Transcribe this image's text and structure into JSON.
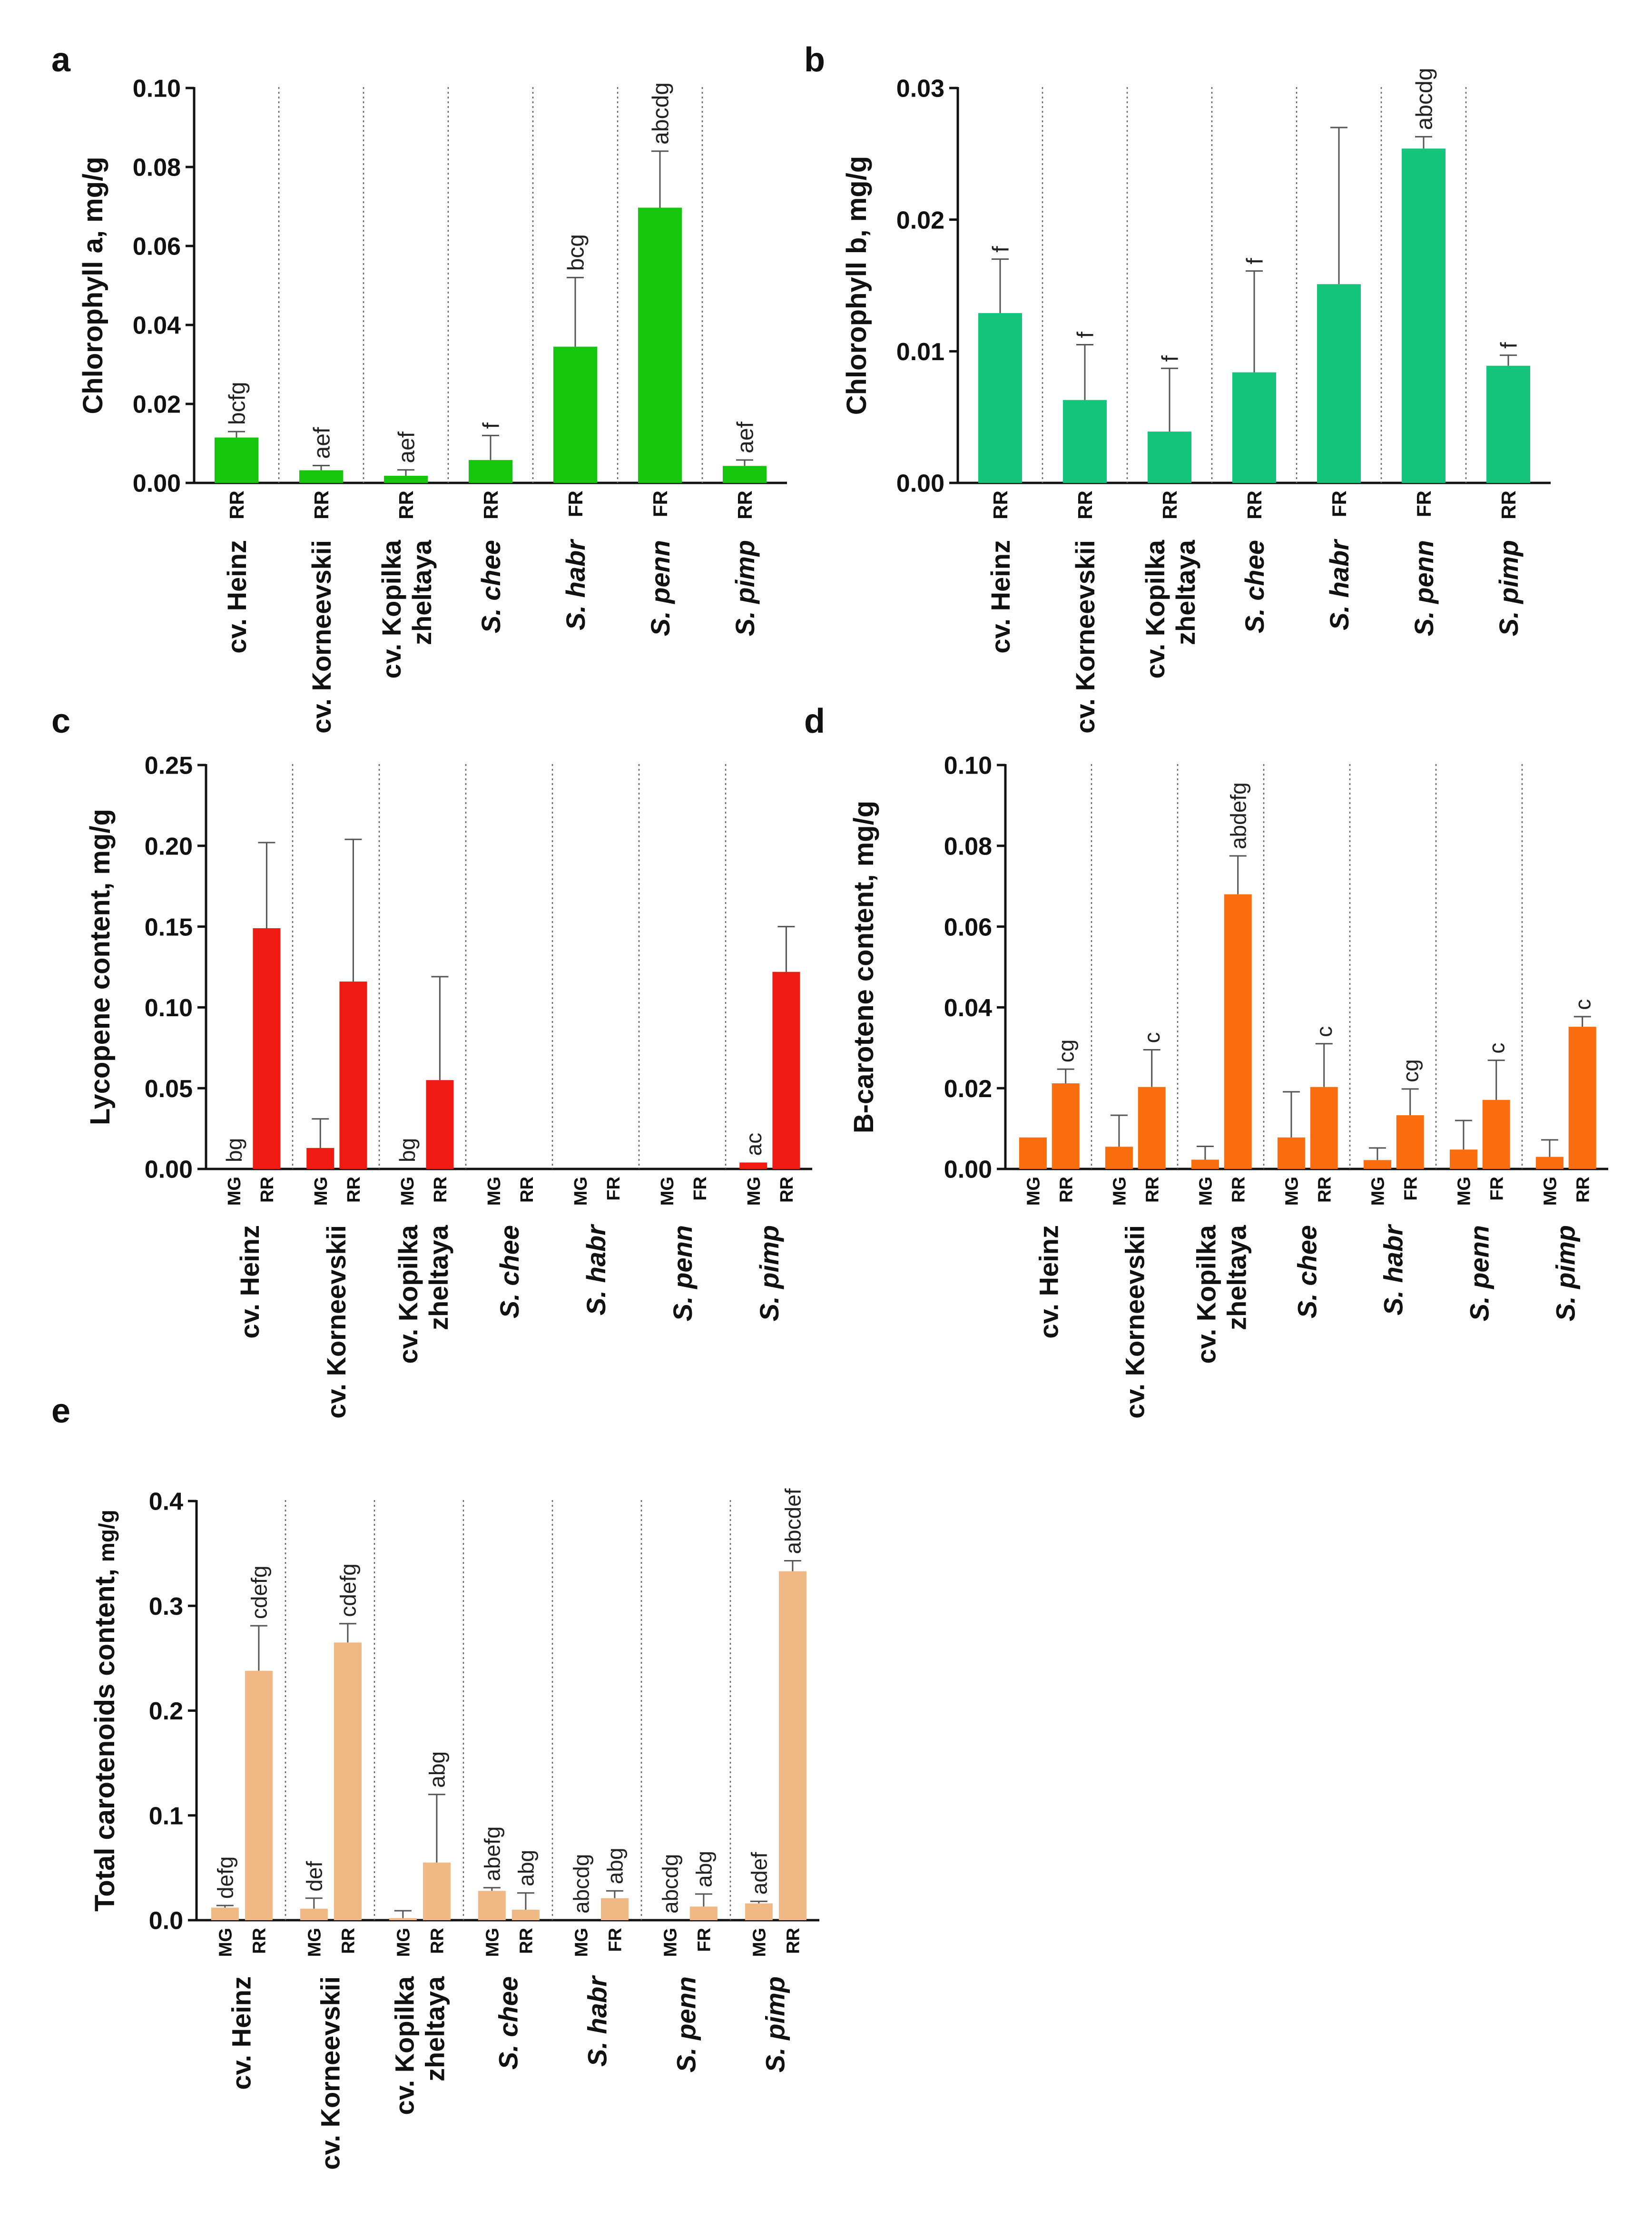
{
  "figure": {
    "panel_labels": [
      "a",
      "b",
      "c",
      "d",
      "e"
    ]
  },
  "chart_data": [
    {
      "id": "a",
      "type": "bar",
      "panel_label": "a",
      "ylabel": "Chlorophyll a, mg/g",
      "ylim": [
        0,
        0.1
      ],
      "yticks": [
        "0.00",
        "0.02",
        "0.04",
        "0.06",
        "0.08",
        "0.10"
      ],
      "color": "#16c60c",
      "groups": [
        {
          "name": "cv. Heinz",
          "italic": false,
          "bars": [
            {
              "stage": "RR",
              "value": 0.0115,
              "err": 0.0015,
              "label": "bcfg"
            }
          ]
        },
        {
          "name": "cv. Korneevskii",
          "italic": false,
          "bars": [
            {
              "stage": "RR",
              "value": 0.0032,
              "err": 0.0012,
              "label": "aef"
            }
          ]
        },
        {
          "name": "cv. Kopilka zheltaya",
          "lines": [
            "cv. Kopilka",
            "zheltaya"
          ],
          "italic": false,
          "bars": [
            {
              "stage": "RR",
              "value": 0.0018,
              "err": 0.0015,
              "label": "aef"
            }
          ]
        },
        {
          "name": "S. chee",
          "italic": true,
          "bars": [
            {
              "stage": "RR",
              "value": 0.0058,
              "err": 0.0062,
              "label": "f"
            }
          ]
        },
        {
          "name": "S. habr",
          "italic": true,
          "bars": [
            {
              "stage": "FR",
              "value": 0.0345,
              "err": 0.0175,
              "label": "bcg"
            }
          ]
        },
        {
          "name": "S. penn",
          "italic": true,
          "bars": [
            {
              "stage": "FR",
              "value": 0.0697,
              "err": 0.0143,
              "label": "abcdg"
            }
          ]
        },
        {
          "name": "S. pimp",
          "italic": true,
          "bars": [
            {
              "stage": "RR",
              "value": 0.0043,
              "err": 0.0015,
              "label": "aef"
            }
          ]
        }
      ]
    },
    {
      "id": "b",
      "type": "bar",
      "panel_label": "b",
      "ylabel": "Chlorophyll b, mg/g",
      "ylim": [
        0,
        0.03
      ],
      "yticks": [
        "0.00",
        "0.01",
        "0.02",
        "0.03"
      ],
      "color": "#14c47a",
      "groups": [
        {
          "name": "cv. Heinz",
          "italic": false,
          "bars": [
            {
              "stage": "RR",
              "value": 0.0129,
              "err": 0.0041,
              "label": "f"
            }
          ]
        },
        {
          "name": "cv. Korneevskii",
          "italic": false,
          "bars": [
            {
              "stage": "RR",
              "value": 0.0063,
              "err": 0.0042,
              "label": "f"
            }
          ]
        },
        {
          "name": "cv. Kopilka zheltaya",
          "lines": [
            "cv. Kopilka",
            "zheltaya"
          ],
          "italic": false,
          "bars": [
            {
              "stage": "RR",
              "value": 0.0039,
              "err": 0.0048,
              "label": "f"
            }
          ]
        },
        {
          "name": "S. chee",
          "italic": true,
          "bars": [
            {
              "stage": "RR",
              "value": 0.0084,
              "err": 0.0077,
              "label": "f"
            }
          ]
        },
        {
          "name": "S. habr",
          "italic": true,
          "bars": [
            {
              "stage": "FR",
              "value": 0.0151,
              "err": 0.0119,
              "label": ""
            }
          ]
        },
        {
          "name": "S. penn",
          "italic": true,
          "bars": [
            {
              "stage": "FR",
              "value": 0.0254,
              "err": 0.0009,
              "label": "abcdg"
            }
          ]
        },
        {
          "name": "S. pimp",
          "italic": true,
          "bars": [
            {
              "stage": "RR",
              "value": 0.0089,
              "err": 0.0008,
              "label": "f"
            }
          ]
        }
      ]
    },
    {
      "id": "c",
      "type": "bar",
      "panel_label": "c",
      "ylabel": "Lycopene content, mg/g",
      "ylim": [
        0,
        0.25
      ],
      "yticks": [
        "0.00",
        "0.05",
        "0.10",
        "0.15",
        "0.20",
        "0.25"
      ],
      "color": "#ef1b12",
      "groups": [
        {
          "name": "cv. Heinz",
          "italic": false,
          "bars": [
            {
              "stage": "MG",
              "value": 0.0,
              "err": 0.0,
              "label": "bg"
            },
            {
              "stage": "RR",
              "value": 0.149,
              "err": 0.053,
              "label": ""
            }
          ]
        },
        {
          "name": "cv. Korneevskii",
          "italic": false,
          "bars": [
            {
              "stage": "MG",
              "value": 0.013,
              "err": 0.018,
              "label": ""
            },
            {
              "stage": "RR",
              "value": 0.116,
              "err": 0.088,
              "label": ""
            }
          ]
        },
        {
          "name": "cv. Kopilka zheltaya",
          "lines": [
            "cv. Kopilka",
            "zheltaya"
          ],
          "italic": false,
          "bars": [
            {
              "stage": "MG",
              "value": 0.0,
              "err": 0.0,
              "label": "bg"
            },
            {
              "stage": "RR",
              "value": 0.055,
              "err": 0.064,
              "label": ""
            }
          ]
        },
        {
          "name": "S. chee",
          "italic": true,
          "bars": [
            {
              "stage": "MG",
              "value": 0.0,
              "err": 0.0,
              "label": ""
            },
            {
              "stage": "RR",
              "value": 0.0,
              "err": 0.0,
              "label": ""
            }
          ]
        },
        {
          "name": "S. habr",
          "italic": true,
          "bars": [
            {
              "stage": "MG",
              "value": 0.0,
              "err": 0.0,
              "label": ""
            },
            {
              "stage": "FR",
              "value": 0.0,
              "err": 0.0,
              "label": ""
            }
          ]
        },
        {
          "name": "S. penn",
          "italic": true,
          "bars": [
            {
              "stage": "MG",
              "value": 0.0,
              "err": 0.0,
              "label": ""
            },
            {
              "stage": "FR",
              "value": 0.0,
              "err": 0.0,
              "label": ""
            }
          ]
        },
        {
          "name": "S. pimp",
          "italic": true,
          "bars": [
            {
              "stage": "MG",
              "value": 0.004,
              "err": 0.0,
              "label": "ac"
            },
            {
              "stage": "RR",
              "value": 0.122,
              "err": 0.028,
              "label": ""
            }
          ]
        }
      ]
    },
    {
      "id": "d",
      "type": "bar",
      "panel_label": "d",
      "ylabel": "B-carotene content, mg/g",
      "ylim": [
        0,
        0.1
      ],
      "yticks": [
        "0.00",
        "0.02",
        "0.04",
        "0.06",
        "0.08",
        "0.10"
      ],
      "color": "#f96d0f",
      "groups": [
        {
          "name": "cv. Heinz",
          "italic": false,
          "bars": [
            {
              "stage": "MG",
              "value": 0.0078,
              "err": 0.0,
              "label": ""
            },
            {
              "stage": "RR",
              "value": 0.0212,
              "err": 0.0035,
              "label": "cg"
            }
          ]
        },
        {
          "name": "cv. Korneevskii",
          "italic": false,
          "bars": [
            {
              "stage": "MG",
              "value": 0.0055,
              "err": 0.0078,
              "label": ""
            },
            {
              "stage": "RR",
              "value": 0.0203,
              "err": 0.0092,
              "label": "c"
            }
          ]
        },
        {
          "name": "cv. Kopilka zheltaya",
          "lines": [
            "cv. Kopilka",
            "zheltaya"
          ],
          "italic": false,
          "bars": [
            {
              "stage": "MG",
              "value": 0.0023,
              "err": 0.0033,
              "label": ""
            },
            {
              "stage": "RR",
              "value": 0.068,
              "err": 0.0095,
              "label": "abdefg"
            }
          ]
        },
        {
          "name": "S. chee",
          "italic": true,
          "bars": [
            {
              "stage": "MG",
              "value": 0.0078,
              "err": 0.0113,
              "label": ""
            },
            {
              "stage": "RR",
              "value": 0.0203,
              "err": 0.0107,
              "label": "c"
            }
          ]
        },
        {
          "name": "S. habr",
          "italic": true,
          "bars": [
            {
              "stage": "MG",
              "value": 0.0022,
              "err": 0.003,
              "label": ""
            },
            {
              "stage": "FR",
              "value": 0.0133,
              "err": 0.0065,
              "label": "cg"
            }
          ]
        },
        {
          "name": "S. penn",
          "italic": true,
          "bars": [
            {
              "stage": "MG",
              "value": 0.0048,
              "err": 0.0072,
              "label": ""
            },
            {
              "stage": "FR",
              "value": 0.0171,
              "err": 0.0098,
              "label": "c"
            }
          ]
        },
        {
          "name": "S. pimp",
          "italic": true,
          "bars": [
            {
              "stage": "MG",
              "value": 0.003,
              "err": 0.0042,
              "label": ""
            },
            {
              "stage": "RR",
              "value": 0.0352,
              "err": 0.0025,
              "label": "c"
            }
          ]
        }
      ]
    },
    {
      "id": "e",
      "type": "bar",
      "panel_label": "e",
      "ylabel": "Total carotenoids content,",
      "ylabel_unit": "mg/g",
      "ylim": [
        0,
        0.4
      ],
      "yticks": [
        "0.0",
        "0.1",
        "0.2",
        "0.3",
        "0.4"
      ],
      "color": "#f0b884",
      "groups": [
        {
          "name": "cv. Heinz",
          "italic": false,
          "bars": [
            {
              "stage": "MG",
              "value": 0.012,
              "err": 0.002,
              "label": "defg"
            },
            {
              "stage": "RR",
              "value": 0.238,
              "err": 0.043,
              "label": "cdefg"
            }
          ]
        },
        {
          "name": "cv. Korneevskii",
          "italic": false,
          "bars": [
            {
              "stage": "MG",
              "value": 0.011,
              "err": 0.01,
              "label": "def"
            },
            {
              "stage": "RR",
              "value": 0.265,
              "err": 0.018,
              "label": "cdefg"
            }
          ]
        },
        {
          "name": "cv. Kopilka zheltaya",
          "lines": [
            "cv. Kopilka",
            "zheltaya"
          ],
          "italic": false,
          "bars": [
            {
              "stage": "MG",
              "value": 0.002,
              "err": 0.007,
              "label": ""
            },
            {
              "stage": "RR",
              "value": 0.055,
              "err": 0.065,
              "label": "abg"
            }
          ]
        },
        {
          "name": "S. chee",
          "italic": true,
          "bars": [
            {
              "stage": "MG",
              "value": 0.028,
              "err": 0.003,
              "label": "abefg"
            },
            {
              "stage": "RR",
              "value": 0.01,
              "err": 0.016,
              "label": "abg"
            }
          ]
        },
        {
          "name": "S. habr",
          "italic": true,
          "bars": [
            {
              "stage": "MG",
              "value": 0.0,
              "err": 0.0,
              "label": "abcdg"
            },
            {
              "stage": "FR",
              "value": 0.021,
              "err": 0.007,
              "label": "abg"
            }
          ]
        },
        {
          "name": "S. penn",
          "italic": true,
          "bars": [
            {
              "stage": "MG",
              "value": 0.0,
              "err": 0.0,
              "label": "abcdg"
            },
            {
              "stage": "FR",
              "value": 0.013,
              "err": 0.012,
              "label": "abg"
            }
          ]
        },
        {
          "name": "S. pimp",
          "italic": true,
          "bars": [
            {
              "stage": "MG",
              "value": 0.016,
              "err": 0.002,
              "label": "adef"
            },
            {
              "stage": "RR",
              "value": 0.333,
              "err": 0.01,
              "label": "abcdef"
            }
          ]
        }
      ]
    }
  ]
}
